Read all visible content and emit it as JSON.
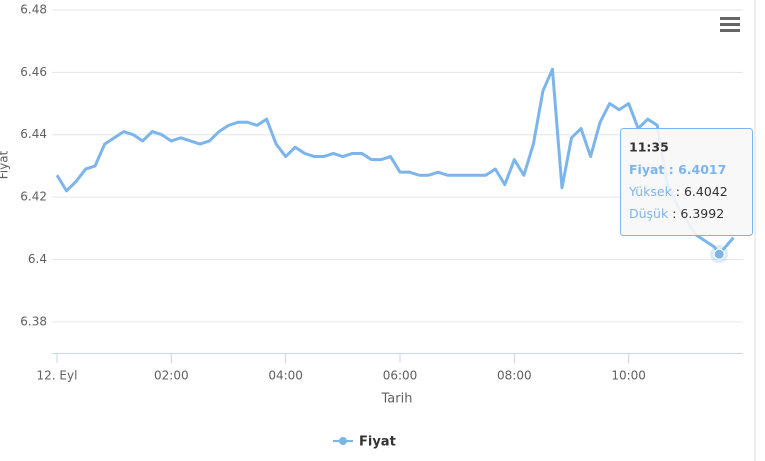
{
  "chart_data": {
    "type": "line",
    "y_axis_title": "Fiyat",
    "x_axis_title": "Tarih",
    "x": [
      "00:00",
      "00:10",
      "00:20",
      "00:30",
      "00:40",
      "00:50",
      "01:00",
      "01:10",
      "01:20",
      "01:30",
      "01:40",
      "01:50",
      "02:00",
      "02:10",
      "02:20",
      "02:30",
      "02:40",
      "02:50",
      "03:00",
      "03:10",
      "03:20",
      "03:30",
      "03:40",
      "03:50",
      "04:00",
      "04:10",
      "04:20",
      "04:30",
      "04:40",
      "04:50",
      "05:00",
      "05:10",
      "05:20",
      "05:30",
      "05:40",
      "05:50",
      "06:00",
      "06:10",
      "06:20",
      "06:30",
      "06:40",
      "06:50",
      "07:00",
      "07:10",
      "07:20",
      "07:30",
      "07:40",
      "07:50",
      "08:00",
      "08:10",
      "08:20",
      "08:30",
      "08:40",
      "08:50",
      "09:00",
      "09:10",
      "09:20",
      "09:30",
      "09:40",
      "09:50",
      "10:00",
      "10:10",
      "10:20",
      "10:30",
      "10:40",
      "10:50",
      "11:00",
      "11:10",
      "11:20",
      "11:30",
      "11:35",
      "11:50"
    ],
    "series": [
      {
        "name": "Fiyat",
        "color": "#7cb5ec",
        "values": [
          6.427,
          6.422,
          6.425,
          6.429,
          6.43,
          6.437,
          6.439,
          6.441,
          6.44,
          6.438,
          6.441,
          6.44,
          6.438,
          6.439,
          6.438,
          6.437,
          6.438,
          6.441,
          6.443,
          6.444,
          6.444,
          6.443,
          6.445,
          6.437,
          6.433,
          6.436,
          6.434,
          6.433,
          6.433,
          6.434,
          6.433,
          6.434,
          6.434,
          6.432,
          6.432,
          6.433,
          6.428,
          6.428,
          6.427,
          6.427,
          6.428,
          6.427,
          6.427,
          6.427,
          6.427,
          6.427,
          6.429,
          6.424,
          6.432,
          6.427,
          6.437,
          6.454,
          6.461,
          6.423,
          6.439,
          6.442,
          6.433,
          6.444,
          6.45,
          6.448,
          6.45,
          6.442,
          6.445,
          6.443,
          6.425,
          6.418,
          6.413,
          6.408,
          6.406,
          6.404,
          6.4017,
          6.407
        ]
      }
    ],
    "xlim": [
      "00:00",
      "12:00"
    ],
    "xticks": [
      {
        "value": "00:00",
        "label": "12. Eyl"
      },
      "02:00",
      "04:00",
      "06:00",
      "08:00",
      "10:00"
    ],
    "ylim": [
      6.37,
      6.48
    ],
    "yticks": [
      6.38,
      6.4,
      6.42,
      6.44,
      6.46,
      6.48
    ],
    "grid": true,
    "tooltip": {
      "index": 70,
      "high_label": "Yüksek",
      "high": 6.4042,
      "low_label": "Düşük",
      "low": 6.3992
    }
  }
}
